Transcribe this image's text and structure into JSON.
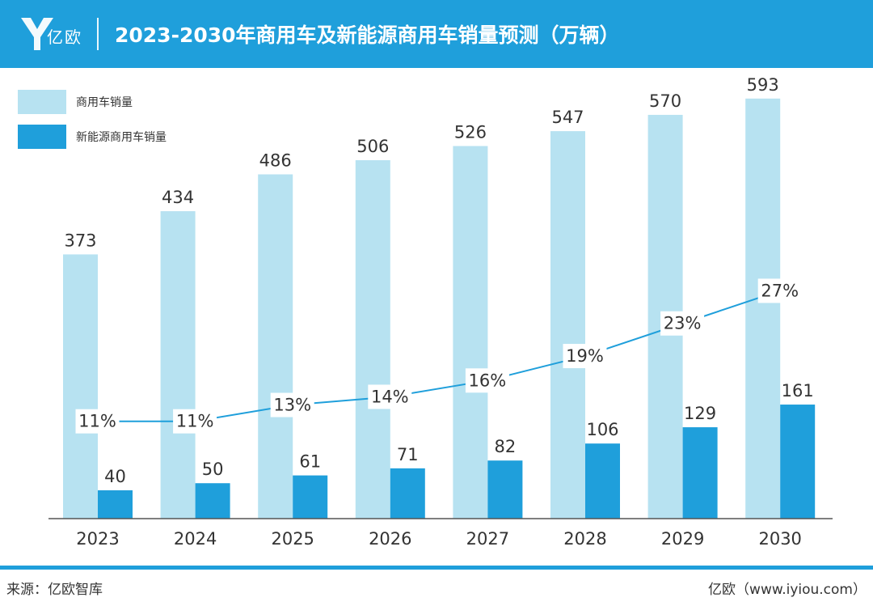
{
  "header": {
    "brand": "亿欧",
    "title": "2023-2030年商用车及新能源商用车销量预测（万辆）"
  },
  "footer": {
    "source": "来源：亿欧智库",
    "site": "亿欧（www.iyiou.com）"
  },
  "colors": {
    "primary": "#1f9fdb",
    "light": "#b7e2f1",
    "axis": "#555555",
    "text": "#333333"
  },
  "chart_data": {
    "type": "bar",
    "title": "2023-2030年商用车及新能源商用车销量预测（万辆）",
    "categories": [
      "2023",
      "2024",
      "2025",
      "2026",
      "2027",
      "2028",
      "2029",
      "2030"
    ],
    "series": [
      {
        "name": "商用车销量",
        "values": [
          373,
          434,
          486,
          506,
          526,
          547,
          570,
          593
        ]
      },
      {
        "name": "新能源商用车销量",
        "values": [
          40,
          50,
          61,
          71,
          82,
          106,
          129,
          161
        ]
      }
    ],
    "penetration": {
      "type": "line",
      "values": [
        11,
        11,
        13,
        14,
        16,
        19,
        23,
        27
      ],
      "labels": [
        "11%",
        "11%",
        "13%",
        "14%",
        "16%",
        "19%",
        "23%",
        "27%"
      ]
    },
    "ylim": [
      0,
      650
    ],
    "legend_position": "top-left",
    "grid": false
  }
}
